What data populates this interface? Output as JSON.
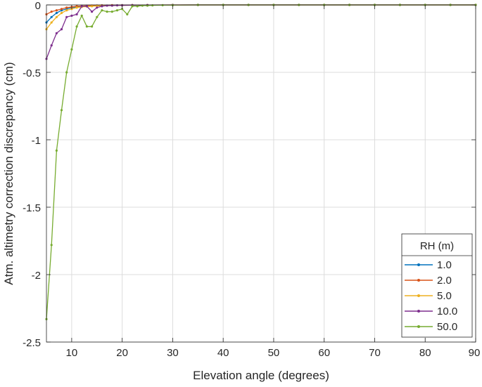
{
  "chart_data": {
    "type": "line",
    "title": "",
    "xlabel": "Elevation angle (degrees)",
    "ylabel": "Atm. altimetry correction discrepancy (cm)",
    "xlim": [
      5,
      90
    ],
    "ylim": [
      -2.5,
      0
    ],
    "xticks": [
      10,
      20,
      30,
      40,
      50,
      60,
      70,
      80,
      90
    ],
    "xtick_labels": [
      "10",
      "20",
      "30",
      "40",
      "50",
      "60",
      "70",
      "80",
      "90"
    ],
    "yticks": [
      -2.5,
      -2,
      -1.5,
      -1,
      -0.5,
      0
    ],
    "ytick_labels": [
      "-2.5",
      "-2",
      "-1.5",
      "-1",
      "-0.5",
      "0"
    ],
    "grid": true,
    "legend": {
      "title": "RH (m)",
      "placement": "bottom-right"
    },
    "series": [
      {
        "name": "1.0",
        "color": "#0072BD",
        "x": [
          5,
          6,
          7,
          8,
          9,
          10,
          11,
          12,
          13,
          14,
          15,
          16,
          18,
          20,
          22,
          25,
          30,
          35,
          40,
          45,
          50,
          55,
          60,
          65,
          70,
          75,
          80,
          85,
          90
        ],
        "y": [
          -0.13,
          -0.09,
          -0.06,
          -0.04,
          -0.03,
          -0.02,
          -0.015,
          -0.01,
          -0.008,
          -0.006,
          -0.005,
          -0.004,
          -0.003,
          -0.002,
          -0.002,
          -0.001,
          -0.001,
          0,
          0,
          0,
          0,
          0,
          0,
          0,
          0,
          0,
          0,
          0,
          0
        ]
      },
      {
        "name": "2.0",
        "color": "#D95319",
        "x": [
          5,
          6,
          7,
          8,
          9,
          10,
          11,
          12,
          13,
          14,
          15,
          16,
          18,
          20,
          22,
          25,
          30,
          35,
          40,
          45,
          50,
          55,
          60,
          65,
          70,
          75,
          80,
          85,
          90
        ],
        "y": [
          -0.07,
          -0.05,
          -0.04,
          -0.03,
          -0.02,
          -0.015,
          -0.01,
          -0.008,
          -0.006,
          -0.005,
          -0.004,
          -0.003,
          -0.002,
          -0.002,
          -0.001,
          -0.001,
          0,
          0,
          0,
          0,
          0,
          0,
          0,
          0,
          0,
          0,
          0,
          0,
          0
        ]
      },
      {
        "name": "5.0",
        "color": "#EDB120",
        "x": [
          5,
          6,
          7,
          8,
          9,
          10,
          11,
          12,
          13,
          14,
          15,
          16,
          18,
          20,
          22,
          25,
          30,
          35,
          40,
          45,
          50,
          55,
          60,
          65,
          70,
          75,
          80,
          85,
          90
        ],
        "y": [
          -0.18,
          -0.13,
          -0.09,
          -0.06,
          -0.04,
          -0.03,
          -0.02,
          -0.015,
          -0.012,
          -0.01,
          -0.008,
          -0.006,
          -0.004,
          -0.003,
          -0.002,
          -0.001,
          -0.001,
          0,
          0,
          0,
          0,
          0,
          0,
          0,
          0,
          0,
          0,
          0,
          0
        ]
      },
      {
        "name": "10.0",
        "color": "#7E2F8E",
        "x": [
          5,
          6,
          7,
          8,
          9,
          10,
          11,
          12,
          13,
          14,
          15,
          16,
          17,
          18,
          19,
          20,
          22,
          25,
          30,
          35,
          40,
          45,
          50,
          55,
          60,
          65,
          70,
          75,
          80,
          85,
          90
        ],
        "y": [
          -0.4,
          -0.3,
          -0.21,
          -0.18,
          -0.09,
          -0.08,
          -0.07,
          -0.01,
          -0.01,
          -0.05,
          -0.02,
          -0.01,
          -0.005,
          -0.005,
          -0.003,
          -0.003,
          -0.002,
          -0.001,
          0,
          0,
          0,
          0,
          0,
          0,
          0,
          0,
          0,
          0,
          0,
          0,
          0
        ]
      },
      {
        "name": "50.0",
        "color": "#77AC30",
        "x": [
          5,
          6,
          7,
          8,
          9,
          10,
          11,
          12,
          13,
          14,
          15,
          16,
          17,
          18,
          19,
          20,
          21,
          22,
          23,
          24,
          25,
          26,
          28,
          30,
          35,
          40,
          45,
          50,
          55,
          60,
          65,
          70,
          75,
          80,
          85,
          90
        ],
        "y": [
          -2.33,
          -1.78,
          -1.08,
          -0.78,
          -0.5,
          -0.33,
          -0.16,
          -0.08,
          -0.16,
          -0.16,
          -0.09,
          -0.04,
          -0.05,
          -0.05,
          -0.04,
          -0.03,
          -0.07,
          -0.01,
          -0.01,
          -0.005,
          -0.005,
          -0.003,
          -0.002,
          -0.001,
          0,
          0,
          0,
          0,
          0,
          0,
          0,
          0,
          0,
          0,
          0,
          0
        ]
      }
    ]
  }
}
